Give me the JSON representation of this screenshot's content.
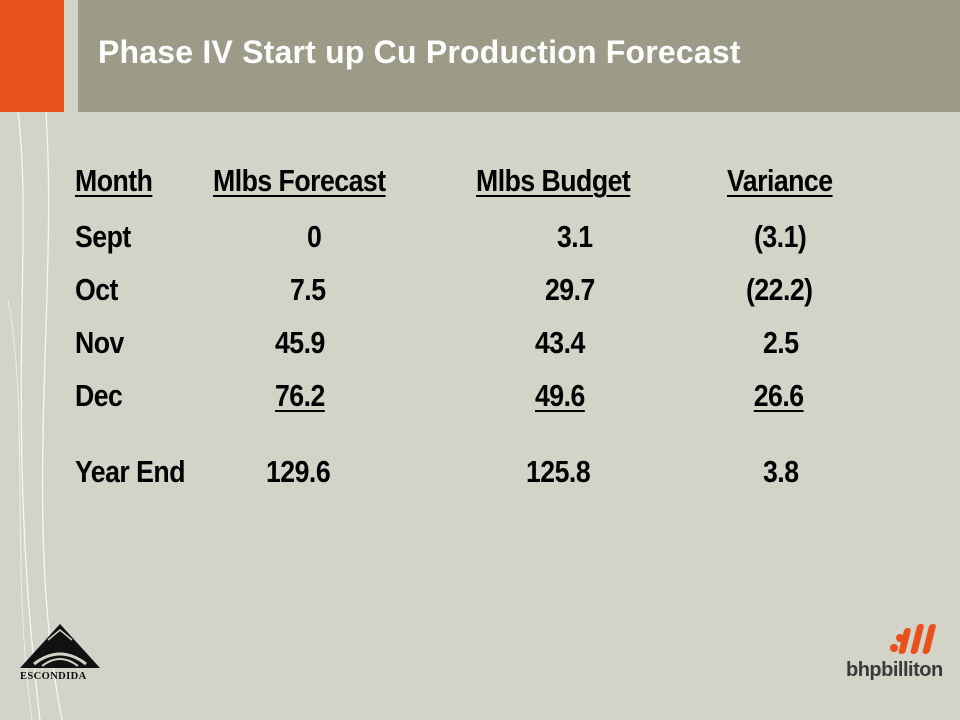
{
  "slide": {
    "title": "Phase IV Start up Cu Production Forecast"
  },
  "table": {
    "headers": [
      "Month",
      "Mlbs Forecast",
      "Mlbs Budget",
      "Variance"
    ],
    "rows": [
      [
        "Sept",
        "0",
        "3.1",
        "(3.1)"
      ],
      [
        "Oct",
        "7.5",
        "29.7",
        "(22.2)"
      ],
      [
        "Nov",
        "45.9",
        "43.4",
        "2.5"
      ],
      [
        "Dec",
        "76.2",
        "49.6",
        "26.6"
      ]
    ],
    "total": [
      "Year End",
      "129.6",
      "125.8",
      "3.8"
    ]
  },
  "logos": {
    "left_text": "ESCONDIDA",
    "right_text": "bhpbilliton"
  },
  "colors": {
    "background": "#d4d3c8",
    "title_bar": "#9c9b88",
    "accent_orange": "#e8501c",
    "text": "#000000"
  }
}
